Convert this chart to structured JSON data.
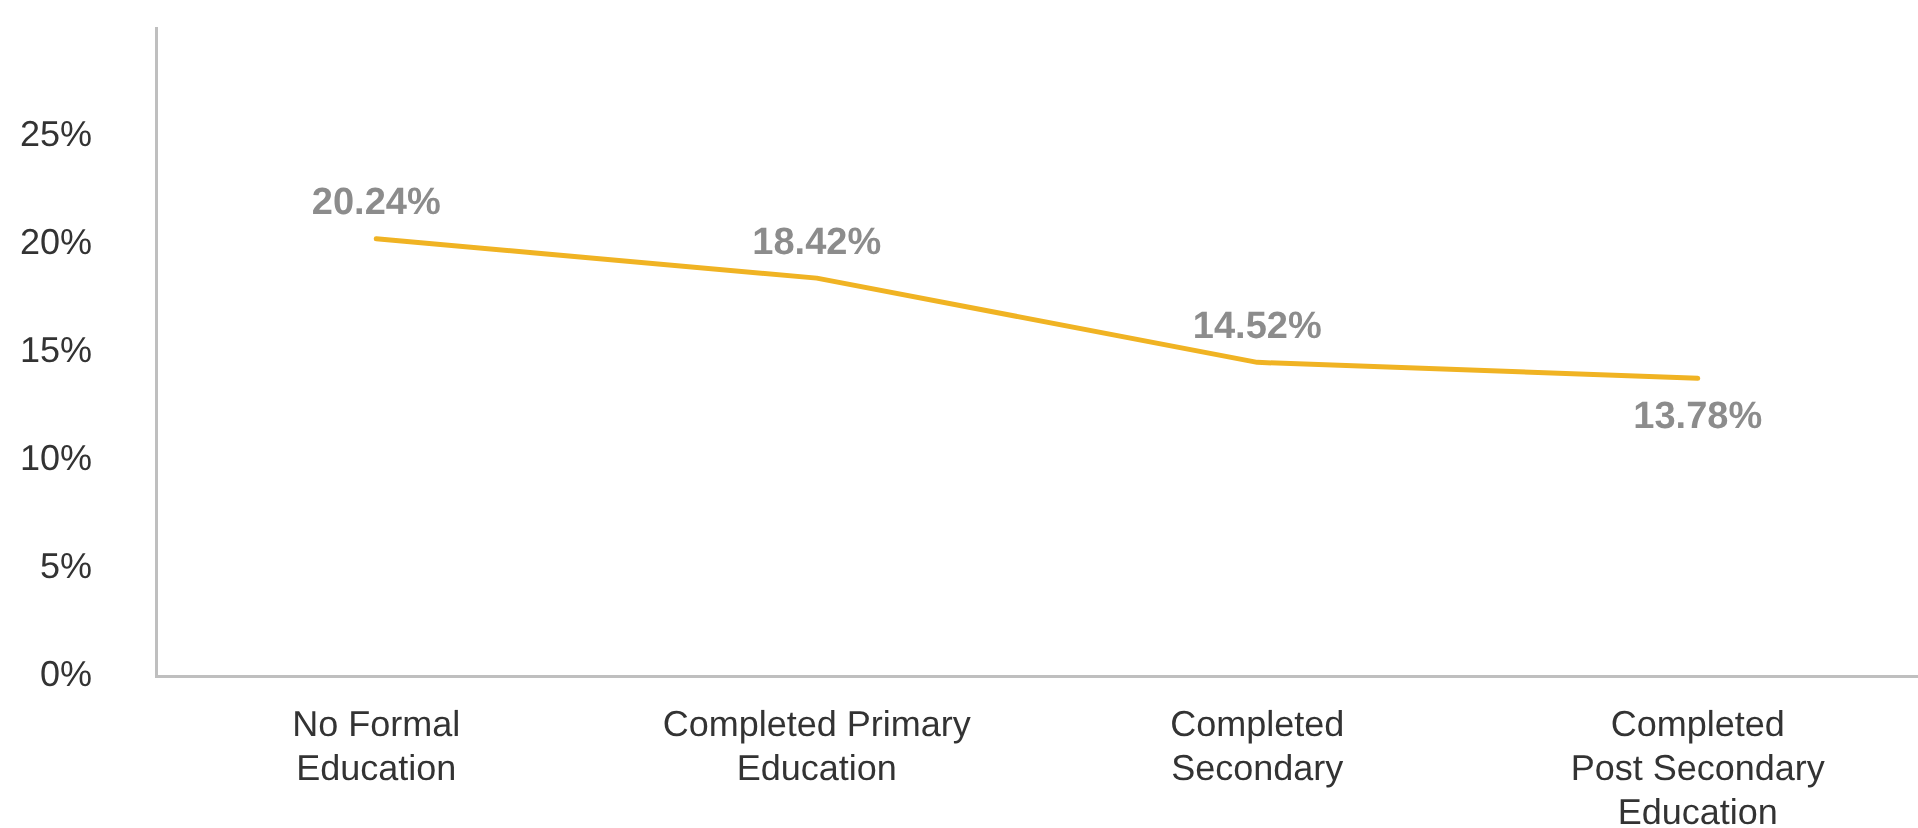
{
  "chart_data": {
    "type": "line",
    "categories": [
      "No Formal\nEducation",
      "Completed Primary\nEducation",
      "Completed\nSecondary",
      "Completed\nPost Secondary\nEducation"
    ],
    "values": [
      20.24,
      18.42,
      14.52,
      13.78
    ],
    "color": "#f0b323",
    "marker": "none",
    "line_style": "solid",
    "value_labels": [
      "20.24%",
      "18.42%",
      "14.52%",
      "13.78%"
    ],
    "ylim": [
      0,
      30
    ],
    "yticks": [
      {
        "value": 0,
        "label": "0%"
      },
      {
        "value": 5,
        "label": "5%"
      },
      {
        "value": 10,
        "label": "10%"
      },
      {
        "value": 15,
        "label": "15%"
      },
      {
        "value": 20,
        "label": "20%"
      },
      {
        "value": 25,
        "label": "25%"
      }
    ],
    "grid": false
  }
}
